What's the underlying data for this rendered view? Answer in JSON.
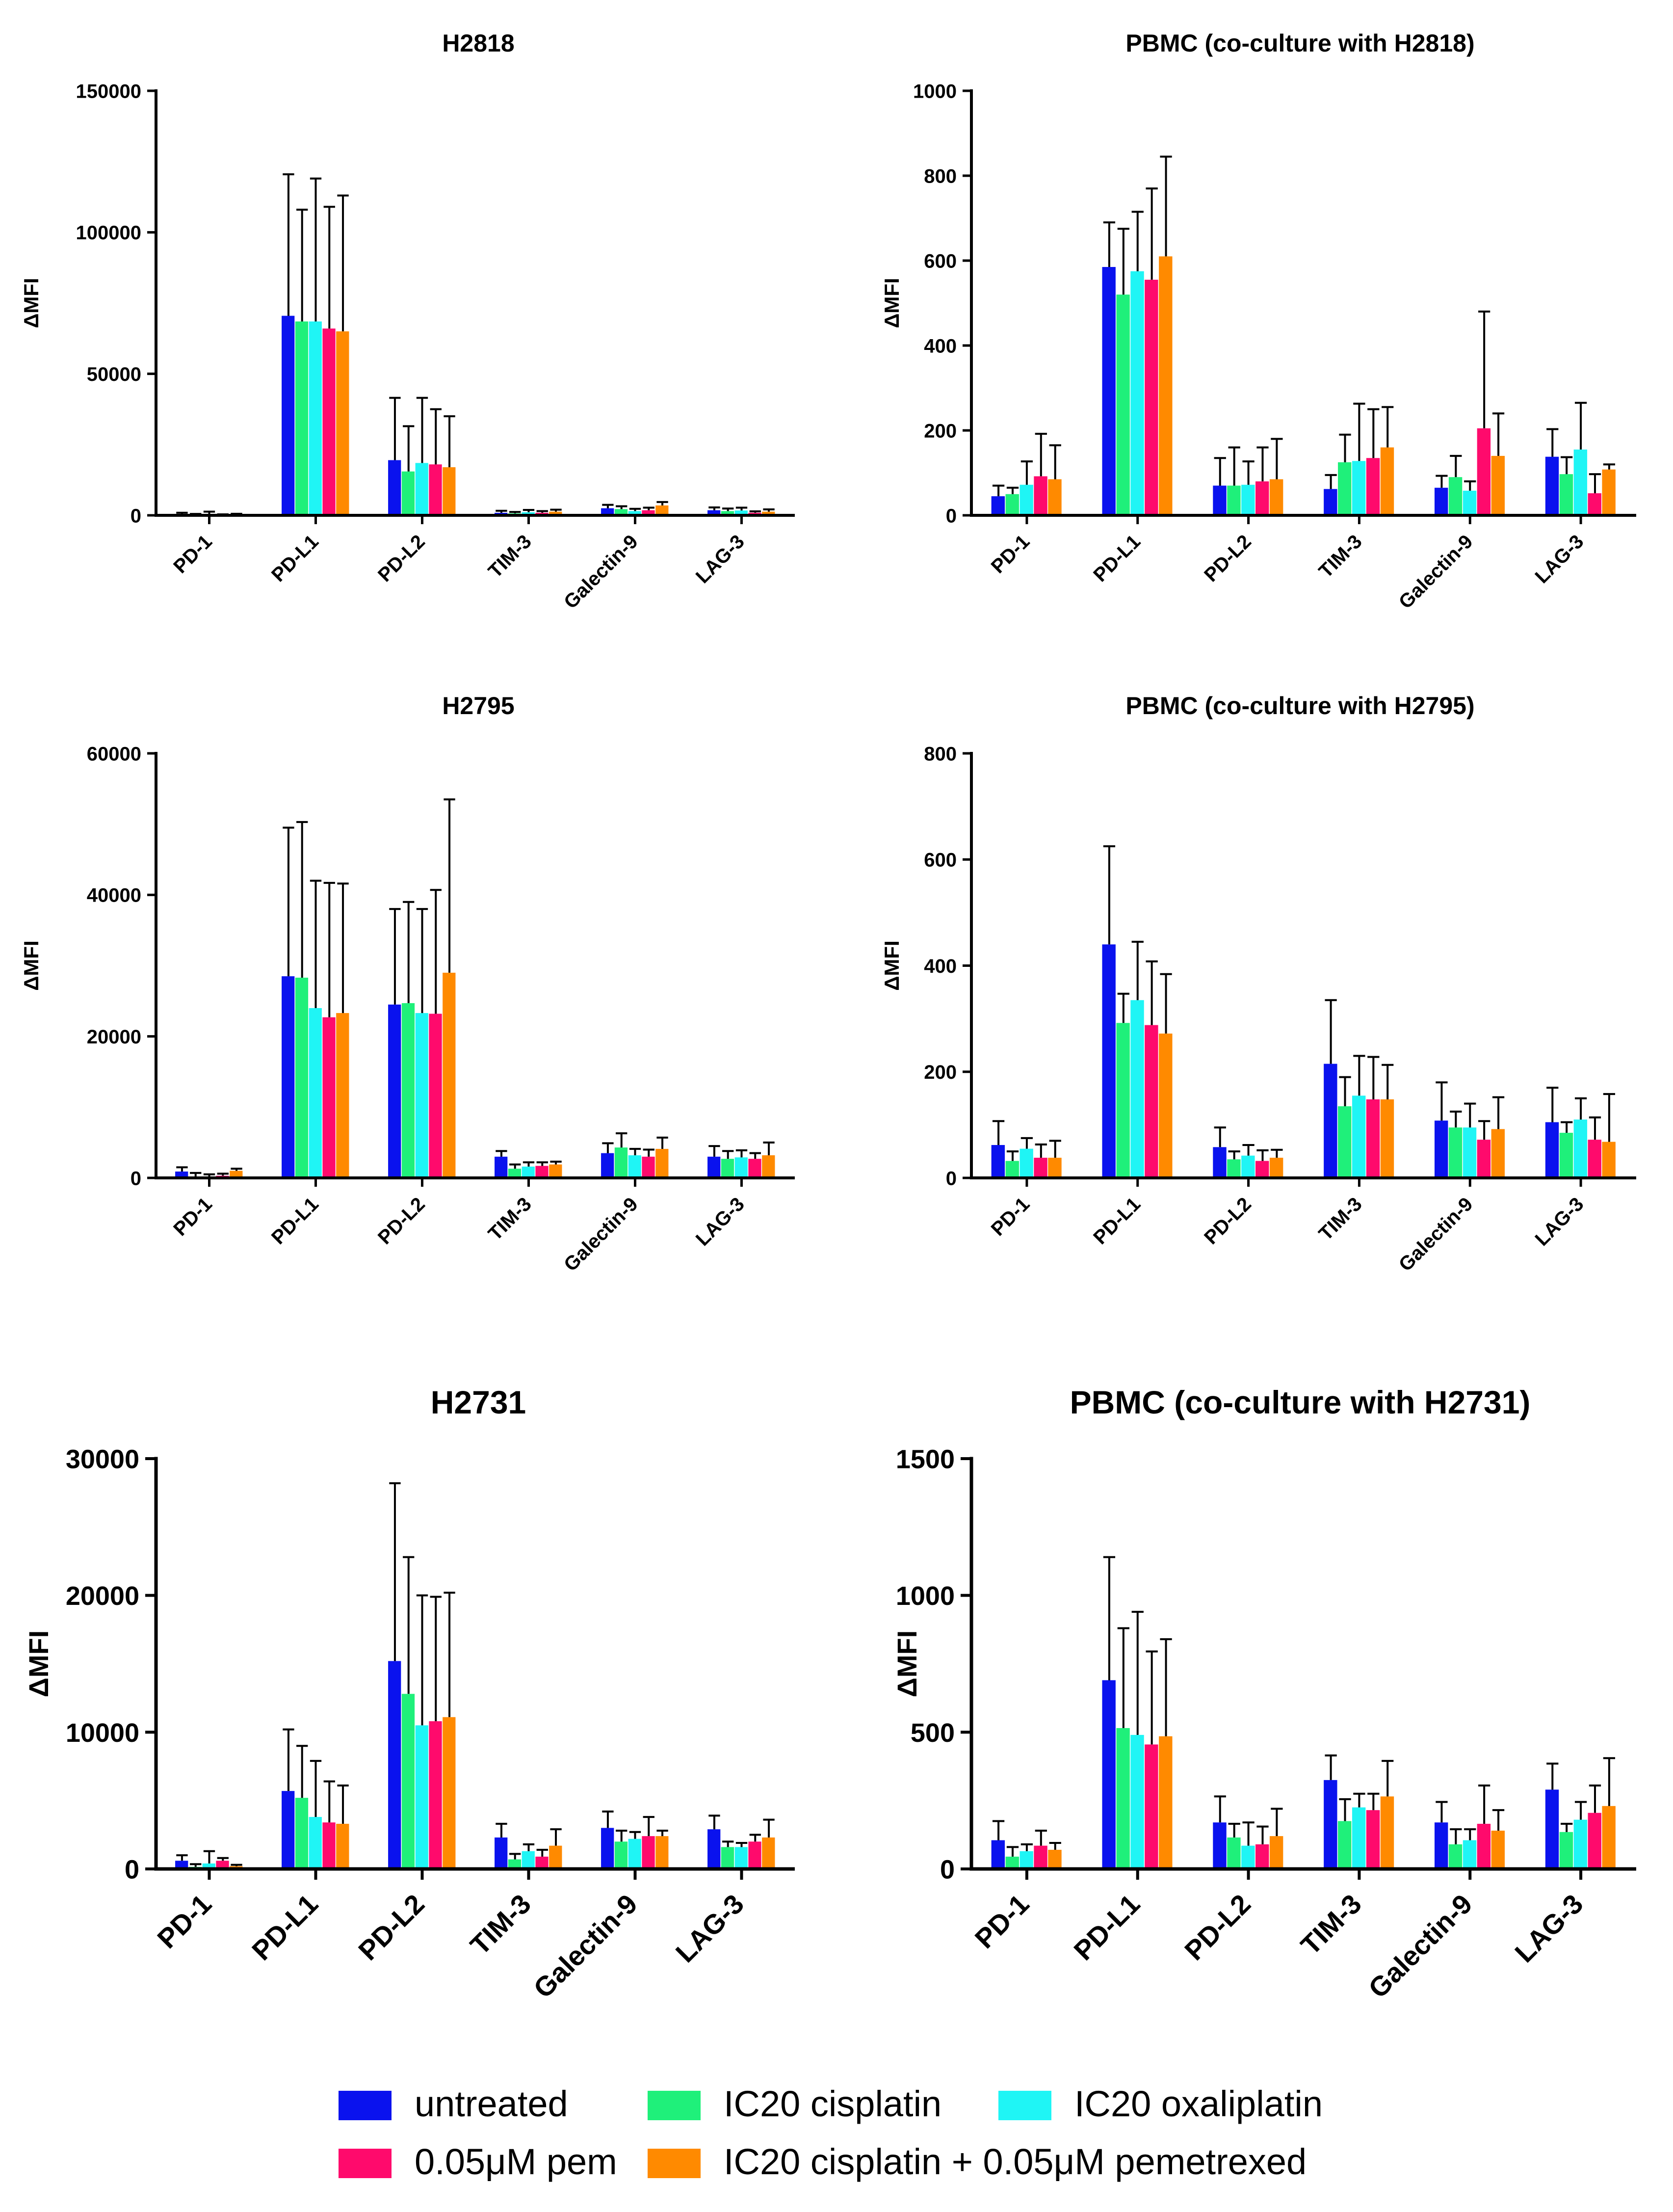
{
  "colors": {
    "series": [
      "#0a12ee",
      "#1ff07a",
      "#1ff5f5",
      "#ff0a6c",
      "#ff8a00"
    ],
    "axis": "#000000",
    "error_bar": "#000000",
    "background": "#ffffff"
  },
  "legend": {
    "entries": [
      "untreated",
      "IC20 cisplatin",
      "IC20 oxaliplatin",
      "0.05μM pem",
      "IC20 cisplatin + 0.05μM pemetrexed"
    ]
  },
  "chart_data": [
    {
      "type": "bar",
      "title": "H2818",
      "ylabel": "ΔMFI",
      "xlabel": "",
      "ylim": [
        0,
        150000
      ],
      "yticks": [
        0,
        50000,
        100000,
        150000
      ],
      "ytick_labels": [
        "0",
        "50000",
        "100000",
        "150000"
      ],
      "categories": [
        "PD-1",
        "PD-L1",
        "PD-L2",
        "TIM-3",
        "Galectin-9",
        "LAG-3"
      ],
      "series": [
        {
          "name": "untreated",
          "values": [
            400,
            70500,
            19500,
            900,
            2500,
            1800
          ],
          "errors": [
            500,
            50000,
            22000,
            700,
            1200,
            1000
          ]
        },
        {
          "name": "IC20 cisplatin",
          "values": [
            200,
            68500,
            15500,
            700,
            2200,
            1500
          ],
          "errors": [
            300,
            39500,
            16000,
            500,
            1000,
            900
          ]
        },
        {
          "name": "IC20 oxaliplatin",
          "values": [
            300,
            68500,
            18500,
            1100,
            1500,
            1700
          ],
          "errors": [
            1000,
            50500,
            23000,
            800,
            800,
            1000
          ]
        },
        {
          "name": "0.05μM pem",
          "values": [
            150,
            66000,
            18000,
            900,
            1800,
            900
          ],
          "errors": [
            200,
            43000,
            19500,
            600,
            900,
            500
          ]
        },
        {
          "name": "IC20 cisplatin + 0.05μM pemetrexed",
          "values": [
            250,
            65000,
            17000,
            1300,
            3500,
            1300
          ],
          "errors": [
            300,
            48000,
            18000,
            700,
            1200,
            800
          ]
        }
      ]
    },
    {
      "type": "bar",
      "title": "PBMC (co-culture with H2818)",
      "ylabel": "ΔMFI",
      "xlabel": "",
      "ylim": [
        0,
        1000
      ],
      "yticks": [
        0,
        200,
        400,
        600,
        800,
        1000
      ],
      "ytick_labels": [
        "0",
        "200",
        "400",
        "600",
        "800",
        "1000"
      ],
      "categories": [
        "PD-1",
        "PD-L1",
        "PD-L2",
        "TIM-3",
        "Galectin-9",
        "LAG-3"
      ],
      "series": [
        {
          "name": "untreated",
          "values": [
            45,
            585,
            70,
            62,
            65,
            138
          ],
          "errors": [
            25,
            105,
            65,
            33,
            28,
            65
          ]
        },
        {
          "name": "IC20 cisplatin",
          "values": [
            50,
            520,
            70,
            125,
            90,
            97
          ],
          "errors": [
            15,
            155,
            90,
            65,
            50,
            40
          ]
        },
        {
          "name": "IC20 oxaliplatin",
          "values": [
            72,
            575,
            72,
            128,
            58,
            155
          ],
          "errors": [
            55,
            140,
            55,
            135,
            22,
            110
          ]
        },
        {
          "name": "0.05μM pem",
          "values": [
            92,
            555,
            80,
            135,
            205,
            52
          ],
          "errors": [
            100,
            215,
            80,
            115,
            275,
            45
          ]
        },
        {
          "name": "IC20 cisplatin + 0.05μM pemetrexed",
          "values": [
            85,
            610,
            85,
            160,
            140,
            108
          ],
          "errors": [
            80,
            235,
            95,
            95,
            100,
            12
          ]
        }
      ]
    },
    {
      "type": "bar",
      "title": "H2795",
      "ylabel": "ΔMFI",
      "xlabel": "",
      "ylim": [
        0,
        60000
      ],
      "yticks": [
        0,
        20000,
        40000,
        60000
      ],
      "ytick_labels": [
        "0",
        "20000",
        "40000",
        "60000"
      ],
      "categories": [
        "PD-1",
        "PD-L1",
        "PD-L2",
        "TIM-3",
        "Galectin-9",
        "LAG-3"
      ],
      "series": [
        {
          "name": "untreated",
          "values": [
            900,
            28500,
            24500,
            3000,
            3500,
            3000
          ],
          "errors": [
            600,
            21000,
            13500,
            800,
            1400,
            1500
          ]
        },
        {
          "name": "IC20 cisplatin",
          "values": [
            200,
            28300,
            24700,
            1300,
            4300,
            2700
          ],
          "errors": [
            500,
            22000,
            14300,
            600,
            2000,
            1100
          ]
        },
        {
          "name": "IC20 oxaliplatin",
          "values": [
            100,
            24000,
            23300,
            1600,
            3200,
            2900
          ],
          "errors": [
            400,
            18000,
            14700,
            600,
            900,
            1000
          ]
        },
        {
          "name": "0.05μM pem",
          "values": [
            300,
            22700,
            23200,
            1700,
            3000,
            2700
          ],
          "errors": [
            300,
            19000,
            17500,
            500,
            1000,
            800
          ]
        },
        {
          "name": "IC20 cisplatin + 0.05μM pemetrexed",
          "values": [
            1000,
            23300,
            29000,
            1900,
            4100,
            3200
          ],
          "errors": [
            300,
            18300,
            24500,
            400,
            1600,
            1800
          ]
        }
      ]
    },
    {
      "type": "bar",
      "title": "PBMC (co-culture with H2795)",
      "ylabel": "ΔMFI",
      "xlabel": "",
      "ylim": [
        0,
        800
      ],
      "yticks": [
        0,
        200,
        400,
        600,
        800
      ],
      "ytick_labels": [
        "0",
        "200",
        "400",
        "600",
        "800"
      ],
      "categories": [
        "PD-1",
        "PD-L1",
        "PD-L2",
        "TIM-3",
        "Galectin-9",
        "LAG-3"
      ],
      "series": [
        {
          "name": "untreated",
          "values": [
            62,
            440,
            58,
            215,
            108,
            105
          ],
          "errors": [
            45,
            185,
            37,
            120,
            72,
            65
          ]
        },
        {
          "name": "IC20 cisplatin",
          "values": [
            32,
            292,
            35,
            135,
            95,
            85
          ],
          "errors": [
            18,
            55,
            15,
            55,
            30,
            20
          ]
        },
        {
          "name": "IC20 oxaliplatin",
          "values": [
            55,
            335,
            42,
            155,
            95,
            110
          ],
          "errors": [
            20,
            110,
            20,
            75,
            45,
            40
          ]
        },
        {
          "name": "0.05μM pem",
          "values": [
            38,
            288,
            32,
            148,
            72,
            72
          ],
          "errors": [
            25,
            120,
            20,
            80,
            35,
            42
          ]
        },
        {
          "name": "IC20 cisplatin + 0.05μM pemetrexed",
          "values": [
            38,
            272,
            38,
            148,
            92,
            68
          ],
          "errors": [
            32,
            112,
            15,
            65,
            60,
            90
          ]
        }
      ]
    },
    {
      "type": "bar",
      "title": "H2731",
      "ylabel": "ΔMFI",
      "xlabel": "",
      "ylim": [
        0,
        30000
      ],
      "yticks": [
        0,
        10000,
        20000,
        30000
      ],
      "ytick_labels": [
        "0",
        "10000",
        "20000",
        "30000"
      ],
      "categories": [
        "PD-1",
        "PD-L1",
        "PD-L2",
        "TIM-3",
        "Galectin-9",
        "LAG-3"
      ],
      "series": [
        {
          "name": "untreated",
          "values": [
            600,
            5700,
            15200,
            2300,
            3000,
            2900
          ],
          "errors": [
            400,
            4500,
            13000,
            1000,
            1200,
            1000
          ]
        },
        {
          "name": "IC20 cisplatin",
          "values": [
            150,
            5200,
            12800,
            700,
            2000,
            1600
          ],
          "errors": [
            200,
            3800,
            10000,
            400,
            800,
            400
          ]
        },
        {
          "name": "IC20 oxaliplatin",
          "values": [
            400,
            3800,
            10500,
            1300,
            2200,
            1600
          ],
          "errors": [
            900,
            4100,
            9500,
            500,
            500,
            300
          ]
        },
        {
          "name": "0.05μM pem",
          "values": [
            600,
            3400,
            10800,
            900,
            2400,
            2000
          ],
          "errors": [
            200,
            3000,
            9100,
            500,
            1400,
            500
          ]
        },
        {
          "name": "IC20 cisplatin + 0.05μM pemetrexed",
          "values": [
            200,
            3300,
            11100,
            1700,
            2400,
            2300
          ],
          "errors": [
            100,
            2800,
            9100,
            1200,
            400,
            1300
          ]
        }
      ]
    },
    {
      "type": "bar",
      "title": "PBMC (co-culture with H2731)",
      "ylabel": "ΔMFI",
      "xlabel": "",
      "ylim": [
        0,
        1500
      ],
      "yticks": [
        0,
        500,
        1000,
        1500
      ],
      "ytick_labels": [
        "0",
        "500",
        "1000",
        "1500"
      ],
      "categories": [
        "PD-1",
        "PD-L1",
        "PD-L2",
        "TIM-3",
        "Galectin-9",
        "LAG-3"
      ],
      "series": [
        {
          "name": "untreated",
          "values": [
            105,
            690,
            170,
            325,
            170,
            290
          ],
          "errors": [
            70,
            450,
            95,
            90,
            75,
            95
          ]
        },
        {
          "name": "IC20 cisplatin",
          "values": [
            45,
            515,
            115,
            175,
            90,
            135
          ],
          "errors": [
            35,
            365,
            50,
            80,
            55,
            30
          ]
        },
        {
          "name": "IC20 oxaliplatin",
          "values": [
            65,
            490,
            85,
            225,
            105,
            180
          ],
          "errors": [
            25,
            450,
            85,
            50,
            40,
            65
          ]
        },
        {
          "name": "0.05μM pem",
          "values": [
            85,
            455,
            90,
            215,
            165,
            205
          ],
          "errors": [
            55,
            340,
            65,
            60,
            140,
            100
          ]
        },
        {
          "name": "IC20 cisplatin + 0.05μM pemetrexed",
          "values": [
            70,
            485,
            120,
            265,
            140,
            230
          ],
          "errors": [
            25,
            355,
            100,
            130,
            75,
            175
          ]
        }
      ]
    }
  ]
}
